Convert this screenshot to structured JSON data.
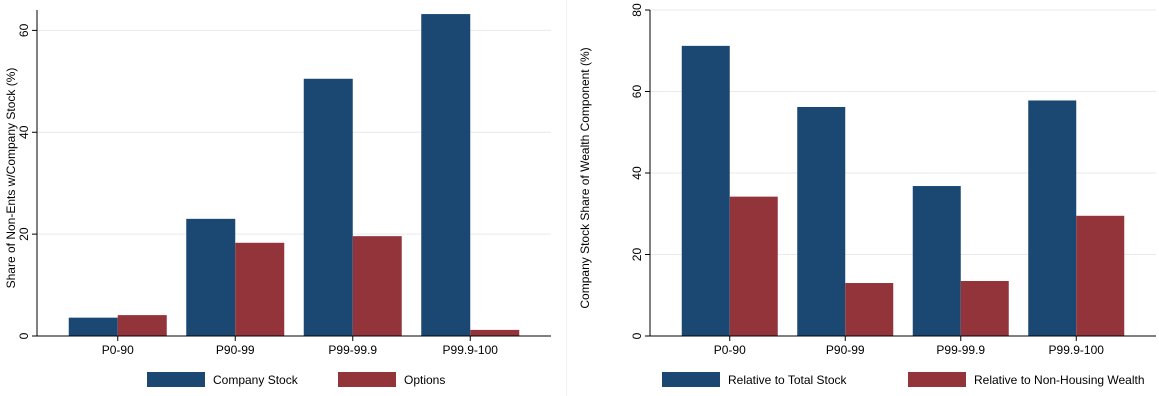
{
  "chart_data": [
    {
      "type": "bar",
      "categories": [
        "P0-90",
        "P90-99",
        "P99-99.9",
        "P99.9-100"
      ],
      "series": [
        {
          "name": "Company Stock",
          "values": [
            3.6,
            23.0,
            50.5,
            63.2
          ],
          "color": "#1a4873"
        },
        {
          "name": "Options",
          "values": [
            4.1,
            18.3,
            19.6,
            1.2
          ],
          "color": "#93343b"
        }
      ],
      "title": "",
      "xlabel": "",
      "ylabel": "Share of Non-Ents w/Company Stock (%)",
      "ylim": [
        0,
        64
      ],
      "yticks": [
        0,
        20,
        40,
        60
      ],
      "grid": true,
      "legend": "bottom"
    },
    {
      "type": "bar",
      "categories": [
        "P0-90",
        "P90-99",
        "P99-99.9",
        "P99.9-100"
      ],
      "series": [
        {
          "name": "Relative to Total Stock",
          "values": [
            71.2,
            56.2,
            36.8,
            57.8
          ],
          "color": "#1a4873"
        },
        {
          "name": "Relative to Non-Housing Wealth",
          "values": [
            34.2,
            13.0,
            13.5,
            29.5
          ],
          "color": "#93343b"
        }
      ],
      "title": "",
      "xlabel": "",
      "ylabel": "Company Stock Share of Wealth Component (%)",
      "ylim": [
        0,
        80
      ],
      "yticks": [
        0,
        20,
        40,
        60,
        80
      ],
      "grid": true,
      "legend": "bottom"
    }
  ]
}
